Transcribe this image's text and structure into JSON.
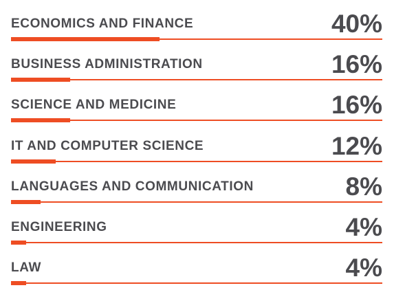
{
  "chart_data": {
    "type": "bar",
    "orientation": "horizontal",
    "categories": [
      "ECONOMICS AND FINANCE",
      "BUSINESS ADMINISTRATION",
      "SCIENCE AND MEDICINE",
      "IT AND COMPUTER SCIENCE",
      "LANGUAGES AND COMMUNICATION",
      "ENGINEERING",
      "LAW"
    ],
    "values": [
      40,
      16,
      16,
      12,
      8,
      4,
      4
    ],
    "value_labels": [
      "40%",
      "16%",
      "16%",
      "12%",
      "8%",
      "4%",
      "4%"
    ],
    "xlim": [
      0,
      100
    ],
    "grid": false,
    "legend": "none",
    "colors": {
      "bar": "#ee4d23",
      "text": "#4b4b4f"
    }
  }
}
